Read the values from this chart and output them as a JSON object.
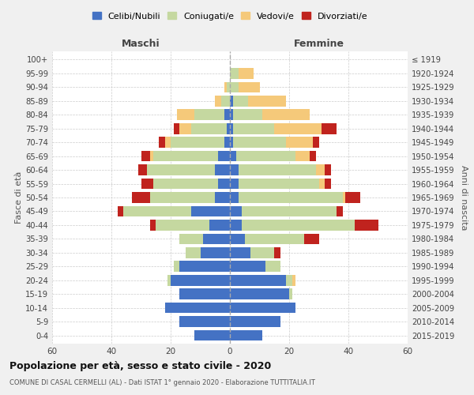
{
  "age_groups": [
    "0-4",
    "5-9",
    "10-14",
    "15-19",
    "20-24",
    "25-29",
    "30-34",
    "35-39",
    "40-44",
    "45-49",
    "50-54",
    "55-59",
    "60-64",
    "65-69",
    "70-74",
    "75-79",
    "80-84",
    "85-89",
    "90-94",
    "95-99",
    "100+"
  ],
  "birth_years": [
    "2015-2019",
    "2010-2014",
    "2005-2009",
    "2000-2004",
    "1995-1999",
    "1990-1994",
    "1985-1989",
    "1980-1984",
    "1975-1979",
    "1970-1974",
    "1965-1969",
    "1960-1964",
    "1955-1959",
    "1950-1954",
    "1945-1949",
    "1940-1944",
    "1935-1939",
    "1930-1934",
    "1925-1929",
    "1920-1924",
    "≤ 1919"
  ],
  "colors": {
    "celibe": "#4472C4",
    "coniugato": "#c5d8a0",
    "vedovo": "#f5c97a",
    "divorziato": "#c0231e"
  },
  "males": {
    "celibe": [
      12,
      17,
      22,
      17,
      20,
      17,
      10,
      9,
      7,
      13,
      5,
      4,
      5,
      4,
      2,
      1,
      2,
      0,
      0,
      0,
      0
    ],
    "coniugato": [
      0,
      0,
      0,
      0,
      1,
      2,
      5,
      8,
      18,
      23,
      22,
      22,
      23,
      22,
      18,
      12,
      10,
      3,
      1,
      0,
      0
    ],
    "vedovo": [
      0,
      0,
      0,
      0,
      0,
      0,
      0,
      0,
      0,
      0,
      0,
      0,
      0,
      1,
      2,
      4,
      6,
      2,
      1,
      0,
      0
    ],
    "divorziato": [
      0,
      0,
      0,
      0,
      0,
      0,
      0,
      0,
      2,
      2,
      6,
      4,
      3,
      3,
      2,
      2,
      0,
      0,
      0,
      0,
      0
    ]
  },
  "females": {
    "nubile": [
      11,
      17,
      22,
      20,
      19,
      12,
      7,
      5,
      4,
      4,
      3,
      3,
      3,
      2,
      1,
      1,
      1,
      1,
      0,
      0,
      0
    ],
    "coniugata": [
      0,
      0,
      0,
      1,
      2,
      5,
      8,
      20,
      38,
      32,
      35,
      27,
      26,
      20,
      18,
      14,
      10,
      5,
      3,
      3,
      0
    ],
    "vedova": [
      0,
      0,
      0,
      0,
      1,
      0,
      0,
      0,
      0,
      0,
      1,
      2,
      3,
      5,
      9,
      16,
      16,
      13,
      7,
      5,
      0
    ],
    "divorziata": [
      0,
      0,
      0,
      0,
      0,
      0,
      2,
      5,
      8,
      2,
      5,
      2,
      2,
      2,
      2,
      5,
      0,
      0,
      0,
      0,
      0
    ]
  },
  "xlim": 60,
  "title": "Popolazione per età, sesso e stato civile - 2020",
  "subtitle": "COMUNE DI CASAL CERMELLI (AL) - Dati ISTAT 1° gennaio 2020 - Elaborazione TUTTITALIA.IT",
  "xlabel_left": "Maschi",
  "xlabel_right": "Femmine",
  "ylabel": "Fasce di età",
  "ylabel_right": "Anni di nascita",
  "legend_labels": [
    "Celibi/Nubili",
    "Coniugati/e",
    "Vedovi/e",
    "Divorziati/e"
  ],
  "bg_color": "#f0f0f0",
  "plot_bg_color": "#ffffff",
  "maschi_color": "#444444",
  "femmine_color": "#444444"
}
